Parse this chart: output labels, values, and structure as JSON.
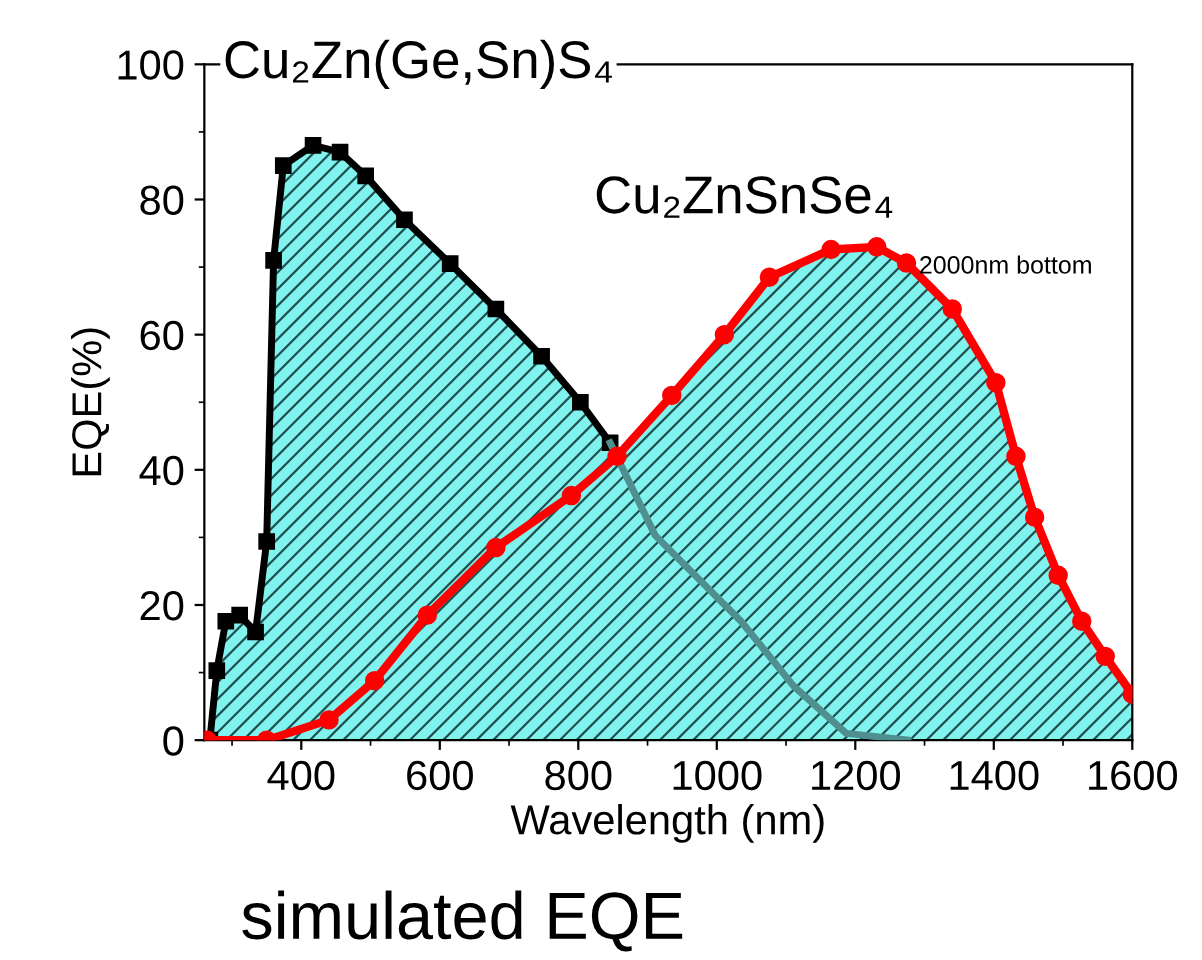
{
  "chart_data": {
    "type": "area",
    "xlabel": "Wavelength (nm)",
    "ylabel": "EQE(%)",
    "xlim": [
      260,
      1600
    ],
    "ylim": [
      0,
      100
    ],
    "xticks": [
      400,
      600,
      800,
      1000,
      1200,
      1400,
      1600
    ],
    "yticks": [
      0,
      20,
      40,
      60,
      80,
      100
    ],
    "grid": false,
    "legend": false,
    "series": [
      {
        "name": "Cu₂Zn(Ge,Sn)S₄",
        "color": "#000000",
        "marker": "square",
        "x": [
          268,
          278,
          291,
          311,
          334,
          350,
          360,
          374,
          417,
          456,
          493,
          549,
          615,
          681,
          747,
          803,
          846
        ],
        "values": [
          0,
          10.3,
          17.6,
          18.5,
          16,
          29.4,
          71,
          85,
          88,
          87,
          83.5,
          77,
          70.5,
          63.8,
          56.8,
          50,
          44
        ]
      },
      {
        "type": "line",
        "color": "#4f8f8f",
        "marker": "none",
        "x": [
          846,
          911,
          1035,
          1111,
          1187,
          1276
        ],
        "values": [
          44,
          30.3,
          17.6,
          8,
          1,
          0
        ]
      },
      {
        "name": "Cu₂ZnSnSe₄",
        "color": "#ff0000",
        "marker": "circle",
        "x": [
          264,
          350,
          440,
          506,
          582,
          681,
          790,
          856,
          935,
          1011,
          1076,
          1165,
          1231,
          1274,
          1340,
          1403,
          1432,
          1459,
          1493,
          1527,
          1561,
          1600
        ],
        "values": [
          0,
          0,
          3,
          8.8,
          18.5,
          28.5,
          36.2,
          42,
          51,
          60,
          68.5,
          72.6,
          73,
          70.6,
          63.8,
          52.9,
          42,
          33,
          24.4,
          17.6,
          12.4,
          6.8
        ]
      }
    ],
    "annotations": [
      "2000nm bottom",
      "simulated EQE"
    ]
  }
}
